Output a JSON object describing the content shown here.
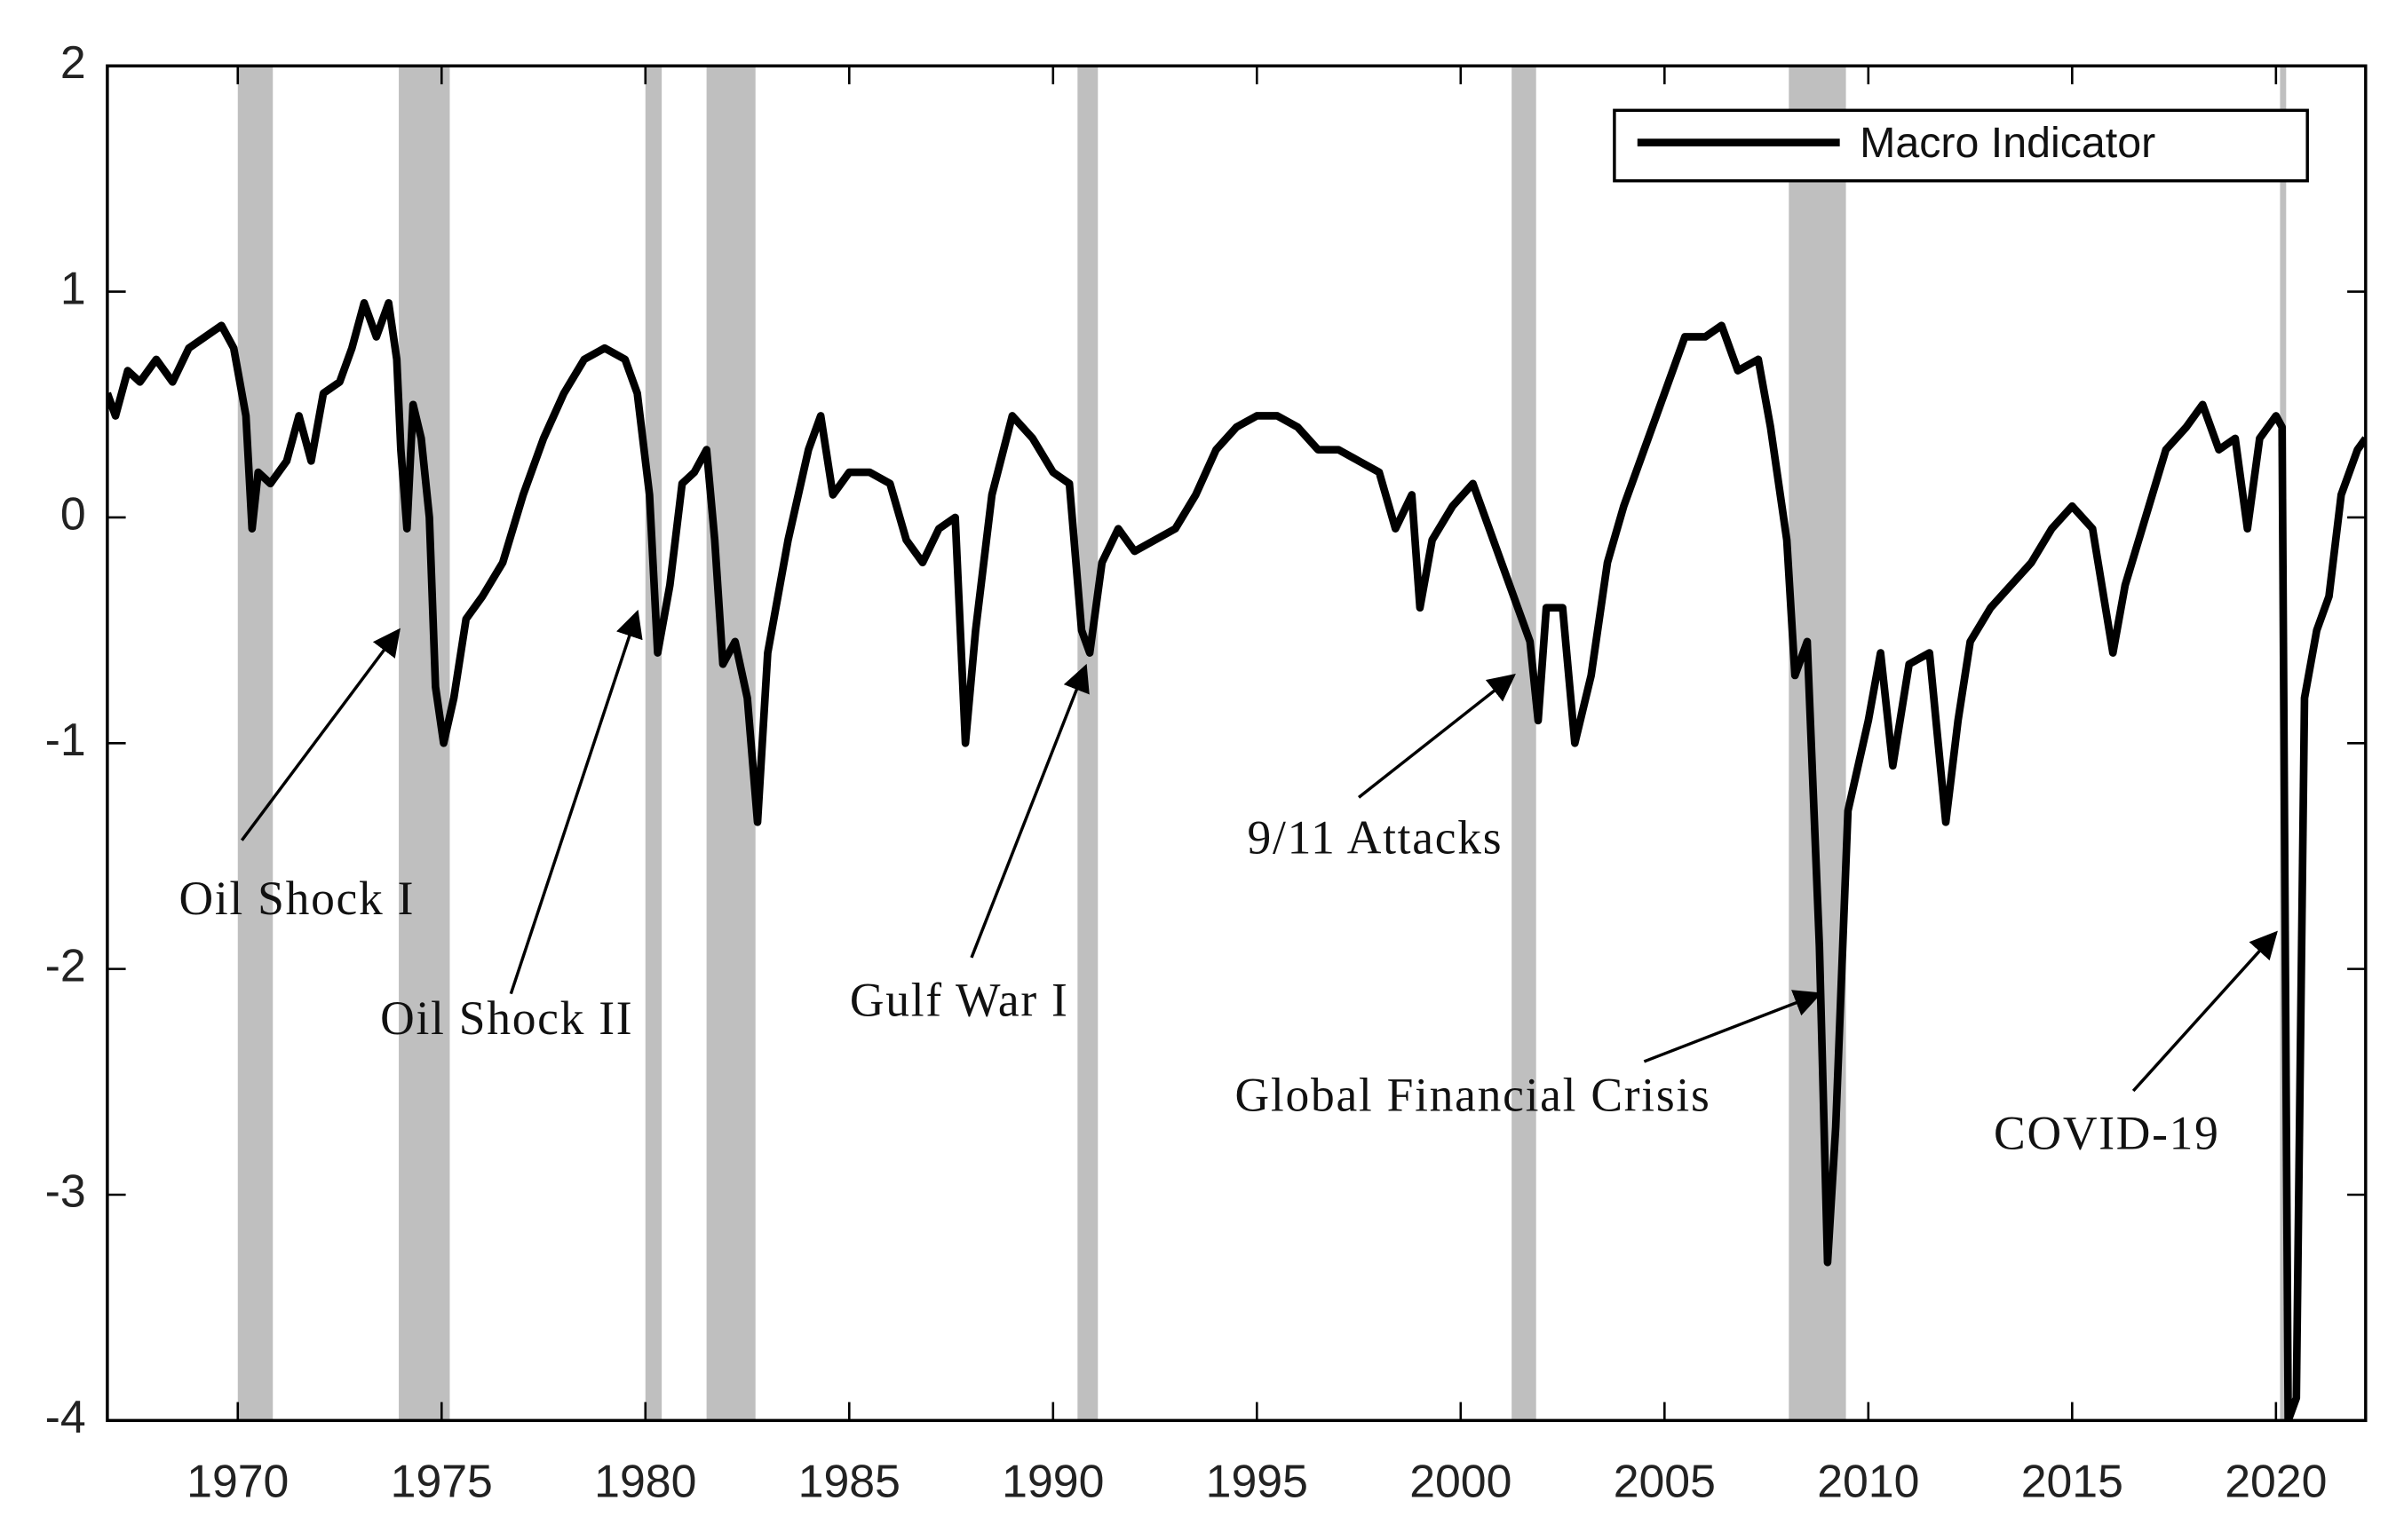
{
  "chart_data": {
    "type": "line",
    "xlim": [
      1966.8,
      2022.2
    ],
    "ylim": [
      -4,
      2
    ],
    "xticks": [
      1970,
      1975,
      1980,
      1985,
      1990,
      1995,
      2000,
      2005,
      2010,
      2015,
      2020
    ],
    "yticks": [
      -4,
      -3,
      -2,
      -1,
      0,
      1,
      2
    ],
    "legend": "upper right",
    "recession_color": "#bfbfbf",
    "recessions": [
      [
        1970.0,
        1970.86
      ],
      [
        1973.95,
        1975.2
      ],
      [
        1980.0,
        1980.4
      ],
      [
        1981.5,
        1982.7
      ],
      [
        1990.6,
        1991.1
      ],
      [
        2001.25,
        2001.85
      ],
      [
        2008.05,
        2009.45
      ],
      [
        2020.1,
        2020.25
      ]
    ],
    "series": [
      {
        "name": "Macro Indicator",
        "color": "#000000",
        "x": [
          1966.8,
          1967.0,
          1967.3,
          1967.6,
          1968.0,
          1968.4,
          1968.8,
          1969.2,
          1969.6,
          1969.9,
          1970.2,
          1970.35,
          1970.5,
          1970.8,
          1971.2,
          1971.5,
          1971.8,
          1972.1,
          1972.5,
          1972.8,
          1973.1,
          1973.4,
          1973.7,
          1973.9,
          1974.0,
          1974.15,
          1974.3,
          1974.5,
          1974.7,
          1974.85,
          1975.05,
          1975.3,
          1975.6,
          1976.0,
          1976.5,
          1977.0,
          1977.5,
          1978.0,
          1978.5,
          1979.0,
          1979.5,
          1979.8,
          1980.1,
          1980.3,
          1980.6,
          1980.9,
          1981.2,
          1981.5,
          1981.7,
          1981.9,
          1982.2,
          1982.5,
          1982.75,
          1983.0,
          1983.5,
          1984.0,
          1984.3,
          1984.6,
          1985.0,
          1985.5,
          1986.0,
          1986.4,
          1986.8,
          1987.2,
          1987.6,
          1987.85,
          1988.1,
          1988.5,
          1989.0,
          1989.5,
          1990.0,
          1990.4,
          1990.7,
          1990.9,
          1991.2,
          1991.6,
          1992.0,
          1992.5,
          1993.0,
          1993.5,
          1994.0,
          1994.5,
          1995.0,
          1995.5,
          1996.0,
          1996.5,
          1997.0,
          1997.5,
          1998.0,
          1998.4,
          1998.8,
          1999.0,
          1999.3,
          1999.8,
          2000.3,
          2000.6,
          2001.0,
          2001.4,
          2001.7,
          2001.9,
          2002.1,
          2002.5,
          2002.8,
          2003.2,
          2003.6,
          2004.0,
          2004.5,
          2005.0,
          2005.5,
          2006.0,
          2006.4,
          2006.8,
          2007.3,
          2007.6,
          2008.0,
          2008.2,
          2008.5,
          2008.8,
          2009.0,
          2009.2,
          2009.5,
          2010.0,
          2010.3,
          2010.6,
          2011.0,
          2011.5,
          2011.9,
          2012.2,
          2012.5,
          2013.0,
          2013.5,
          2014.0,
          2014.5,
          2015.0,
          2015.5,
          2016.0,
          2016.3,
          2016.8,
          2017.3,
          2017.8,
          2018.2,
          2018.6,
          2019.0,
          2019.3,
          2019.6,
          2020.0,
          2020.15,
          2020.3,
          2020.5,
          2020.7,
          2021.0,
          2021.3,
          2021.6,
          2022.0,
          2022.2
        ],
        "values": [
          0.55,
          0.45,
          0.65,
          0.6,
          0.7,
          0.6,
          0.75,
          0.8,
          0.85,
          0.75,
          0.45,
          -0.05,
          0.2,
          0.15,
          0.25,
          0.45,
          0.25,
          0.55,
          0.6,
          0.75,
          0.95,
          0.8,
          0.95,
          0.7,
          0.3,
          -0.05,
          0.5,
          0.35,
          0.0,
          -0.75,
          -1.0,
          -0.8,
          -0.45,
          -0.35,
          -0.2,
          0.1,
          0.35,
          0.55,
          0.7,
          0.75,
          0.7,
          0.55,
          0.1,
          -0.6,
          -0.3,
          0.15,
          0.2,
          0.3,
          -0.1,
          -0.65,
          -0.55,
          -0.8,
          -1.35,
          -0.6,
          -0.1,
          0.3,
          0.45,
          0.1,
          0.2,
          0.2,
          0.15,
          -0.1,
          -0.2,
          -0.05,
          0.0,
          -1.0,
          -0.5,
          0.1,
          0.45,
          0.35,
          0.2,
          0.15,
          -0.5,
          -0.6,
          -0.2,
          -0.05,
          -0.15,
          -0.1,
          -0.05,
          0.1,
          0.3,
          0.4,
          0.45,
          0.45,
          0.4,
          0.3,
          0.3,
          0.25,
          0.2,
          -0.05,
          0.1,
          -0.4,
          -0.1,
          0.05,
          0.15,
          0.0,
          -0.2,
          -0.4,
          -0.55,
          -0.9,
          -0.4,
          -0.4,
          -1.0,
          -0.7,
          -0.2,
          0.05,
          0.3,
          0.55,
          0.8,
          0.8,
          0.85,
          0.65,
          0.7,
          0.4,
          -0.1,
          -0.7,
          -0.55,
          -1.9,
          -3.3,
          -2.7,
          -1.3,
          -0.9,
          -0.6,
          -1.1,
          -0.65,
          -0.6,
          -1.35,
          -0.9,
          -0.55,
          -0.4,
          -0.3,
          -0.2,
          -0.05,
          0.05,
          -0.05,
          -0.6,
          -0.3,
          0.0,
          0.3,
          0.4,
          0.5,
          0.3,
          0.35,
          -0.05,
          0.35,
          0.45,
          0.4,
          -4.0,
          -3.9,
          -0.8,
          -0.5,
          -0.35,
          0.1,
          0.3,
          0.35
        ]
      }
    ],
    "annotations": [
      {
        "text": "Oil Shock I",
        "xytext": [
          1971.45,
          -1.71
        ],
        "arrow_from": [
          1970.1,
          -1.43
        ],
        "xy": [
          1973.95,
          -0.5
        ]
      },
      {
        "text": "Oil Shock II",
        "xytext": [
          1976.6,
          -2.24
        ],
        "arrow_from": [
          1976.7,
          -2.11
        ],
        "xy": [
          1979.8,
          -0.42
        ]
      },
      {
        "text": "Gulf War I",
        "xytext": [
          1987.7,
          -2.16
        ],
        "arrow_from": [
          1988.0,
          -1.95
        ],
        "xy": [
          1990.8,
          -0.66
        ]
      },
      {
        "text": "9/11 Attacks",
        "xytext": [
          1997.9,
          -1.44
        ],
        "arrow_from": [
          1997.5,
          -1.24
        ],
        "xy": [
          2001.3,
          -0.7
        ]
      },
      {
        "text": "Global Financial Crisis",
        "xytext": [
          2000.3,
          -2.58
        ],
        "arrow_from": [
          2004.5,
          -2.41
        ],
        "xy": [
          2008.8,
          -2.11
        ]
      },
      {
        "text": "COVID-19",
        "xytext": [
          2015.85,
          -2.75
        ],
        "arrow_from": [
          2016.5,
          -2.54
        ],
        "xy": [
          2020.0,
          -1.84
        ]
      }
    ]
  }
}
